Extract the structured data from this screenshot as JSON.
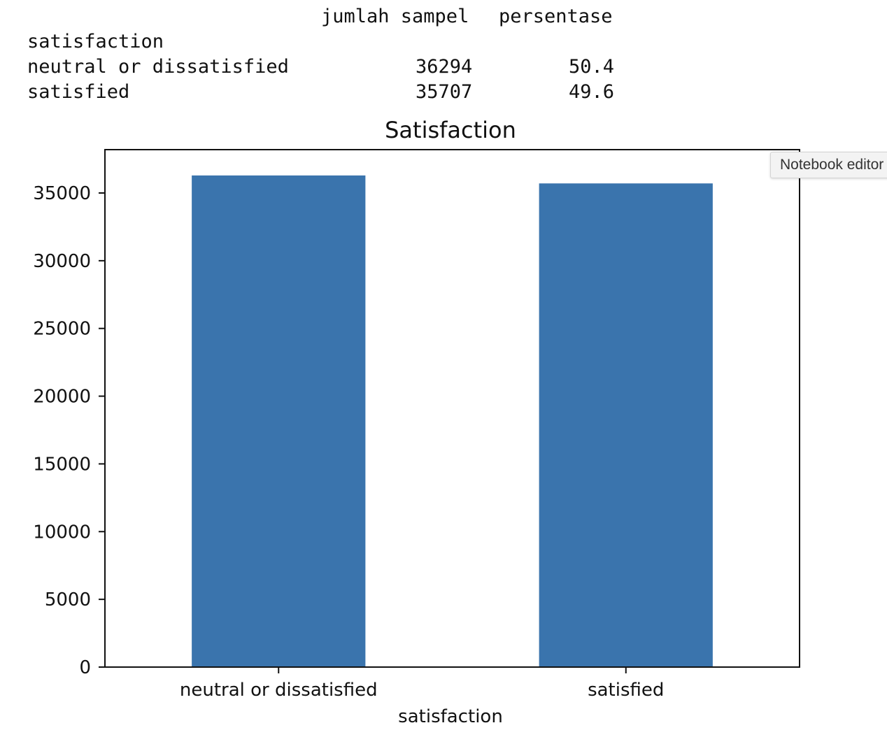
{
  "dataframe": {
    "columns": [
      "jumlah sampel",
      "persentase"
    ],
    "index_name": "satisfaction",
    "rows": [
      {
        "label": "neutral or dissatisfied",
        "count": "36294",
        "pct": "50.4"
      },
      {
        "label": "satisfied",
        "count": "35707",
        "pct": "49.6"
      }
    ]
  },
  "tooltip": {
    "text": "Notebook editor"
  },
  "chart_data": {
    "type": "bar",
    "title": "Satisfaction",
    "xlabel": "satisfaction",
    "ylabel": "",
    "categories": [
      "neutral or dissatisfied",
      "satisfied"
    ],
    "values": [
      36294,
      35707
    ],
    "ylim": [
      0,
      38200
    ],
    "yticks": [
      0,
      5000,
      10000,
      15000,
      20000,
      25000,
      30000,
      35000
    ],
    "bar_color": "#3a74ad",
    "grid": false,
    "legend": "none"
  }
}
